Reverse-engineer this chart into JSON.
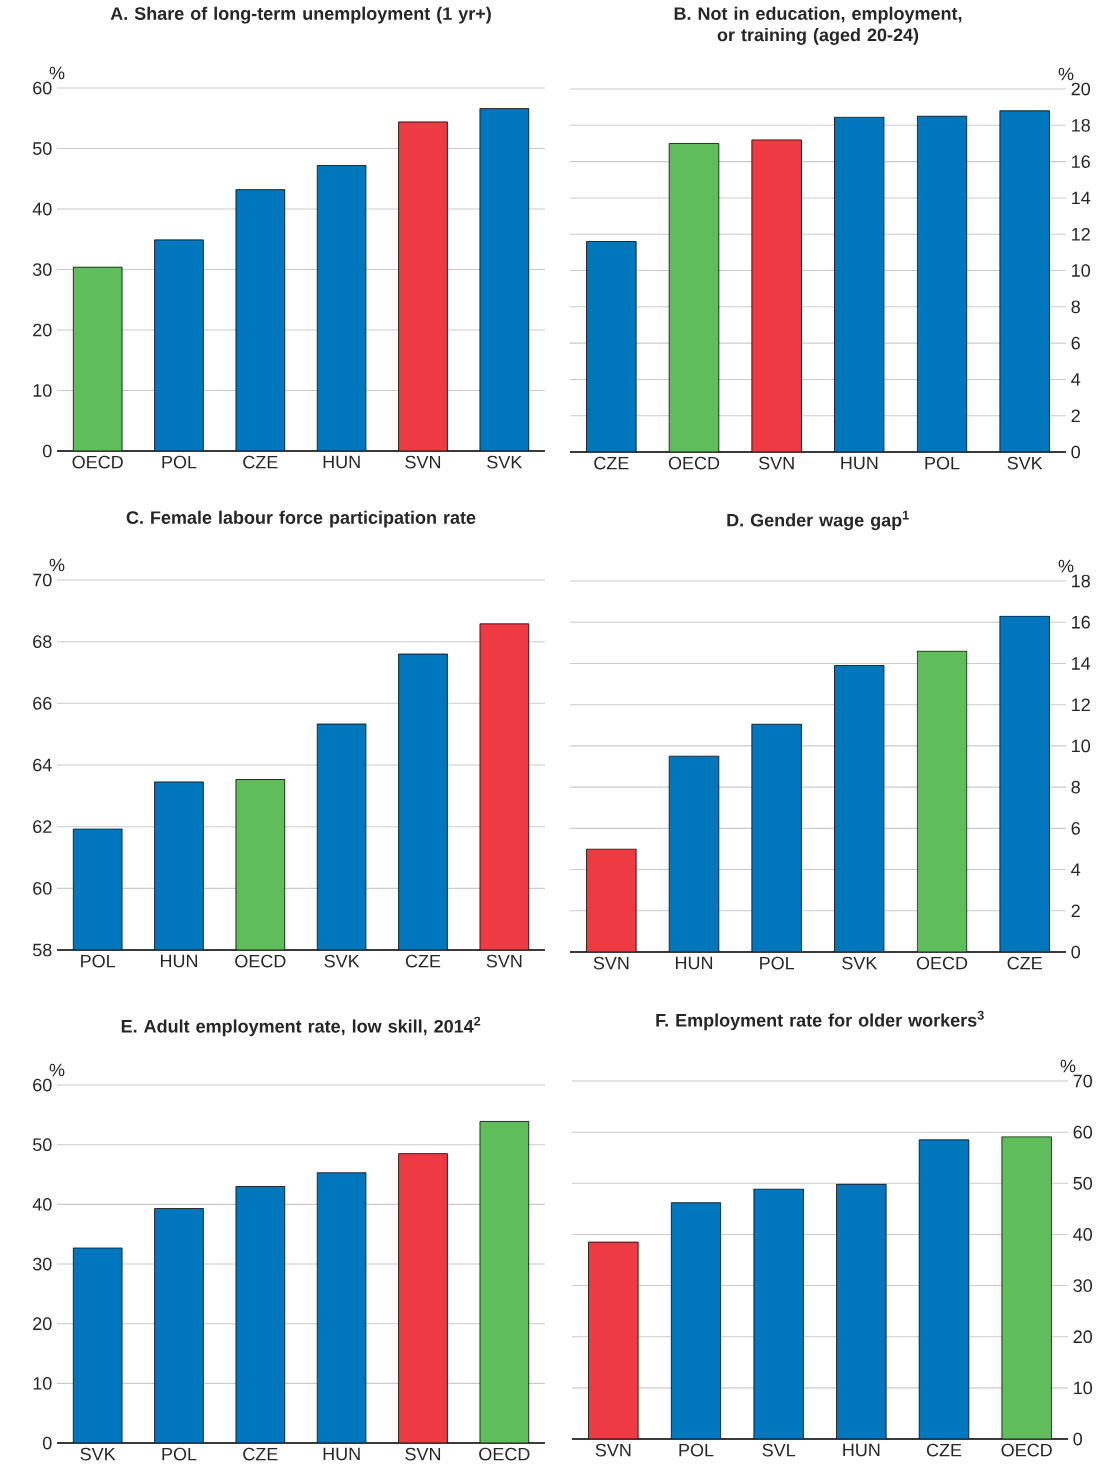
{
  "chart_data": [
    {
      "type": "bar",
      "title": "A. Share of long-term unemployment (1 yr+)",
      "ylabel": "%",
      "categories": [
        "OECD",
        "POL",
        "CZE",
        "HUN",
        "SVN",
        "SVK"
      ],
      "series": [
        {
          "values": [
            30.4,
            34.9,
            43.2,
            47.2,
            54.4,
            56.6
          ],
          "colors": [
            "#5fbd5b",
            "#0077bd",
            "#0077bd",
            "#0077bd",
            "#ee3a43",
            "#0077bd"
          ]
        }
      ],
      "ylim": [
        0,
        60
      ],
      "yticks": [
        0,
        10,
        20,
        30,
        40,
        50,
        60
      ],
      "grid": "y"
    },
    {
      "type": "bar",
      "title": "B. Not in education, employment, or training (aged 20-24)",
      "y2label": "%",
      "categories": [
        "CZE",
        "OECD",
        "SVN",
        "HUN",
        "POL",
        "SVK"
      ],
      "series": [
        {
          "axis": "y2",
          "values": [
            11.6,
            17.0,
            17.2,
            18.45,
            18.5,
            18.8
          ],
          "colors": [
            "#0077bd",
            "#5fbd5b",
            "#ee3a43",
            "#0077bd",
            "#0077bd",
            "#0077bd"
          ]
        }
      ],
      "y2lim": [
        0,
        20
      ],
      "y2ticks": [
        0,
        2,
        4,
        6,
        8,
        10,
        12,
        14,
        16,
        18,
        20
      ],
      "grid": "y"
    },
    {
      "type": "bar",
      "title": "C. Female labour force participation rate",
      "ylabel": "%",
      "categories": [
        "POL",
        "HUN",
        "OECD",
        "SVK",
        "CZE",
        "SVN"
      ],
      "series": [
        {
          "values": [
            61.93,
            63.45,
            63.53,
            65.33,
            67.6,
            68.58
          ],
          "colors": [
            "#0077bd",
            "#0077bd",
            "#5fbd5b",
            "#0077bd",
            "#0077bd",
            "#ee3a43"
          ]
        }
      ],
      "ylim": [
        58,
        70
      ],
      "yticks": [
        58,
        60,
        62,
        64,
        66,
        68,
        70
      ],
      "grid": "y"
    },
    {
      "type": "bar",
      "title": "D. Gender wage gap$^{1}$",
      "y2label": "%",
      "categories": [
        "SVN",
        "HUN",
        "POL",
        "SVK",
        "OECD",
        "CZE"
      ],
      "series": [
        {
          "axis": "y2",
          "values": [
            5.0,
            9.5,
            11.05,
            13.9,
            14.6,
            16.3
          ],
          "colors": [
            "#ee3a43",
            "#0077bd",
            "#0077bd",
            "#0077bd",
            "#5fbd5b",
            "#0077bd"
          ]
        }
      ],
      "y2lim": [
        0,
        18
      ],
      "y2ticks": [
        0,
        2,
        4,
        6,
        8,
        10,
        12,
        14,
        16,
        18
      ],
      "grid": "y"
    },
    {
      "type": "bar",
      "title": "E. Adult employment rate, low skill, 2014$^{2}$",
      "ylabel": "%",
      "categories": [
        "SVK",
        "POL",
        "CZE",
        "HUN",
        "SVN",
        "OECD"
      ],
      "series": [
        {
          "values": [
            32.7,
            39.3,
            43.0,
            45.3,
            48.5,
            53.9
          ],
          "colors": [
            "#0077bd",
            "#0077bd",
            "#0077bd",
            "#0077bd",
            "#ee3a43",
            "#5fbd5b"
          ]
        }
      ],
      "ylim": [
        0,
        60
      ],
      "yticks": [
        0,
        10,
        20,
        30,
        40,
        50,
        60
      ],
      "grid": "y"
    },
    {
      "type": "bar",
      "title": "F. Employment rate for older workers$^{3}$",
      "y2label": "%",
      "categories": [
        "SVN",
        "POL",
        "SVL",
        "HUN",
        "CZE",
        "OECD"
      ],
      "series": [
        {
          "axis": "y2",
          "values": [
            38.5,
            46.2,
            48.9,
            49.8,
            58.5,
            59.1
          ],
          "colors": [
            "#ee3a43",
            "#0077bd",
            "#0077bd",
            "#0077bd",
            "#0077bd",
            "#5fbd5b"
          ]
        }
      ],
      "y2lim": [
        0,
        70
      ],
      "y2ticks": [
        0,
        10,
        20,
        30,
        40,
        50,
        60,
        70
      ],
      "grid": "y"
    }
  ]
}
